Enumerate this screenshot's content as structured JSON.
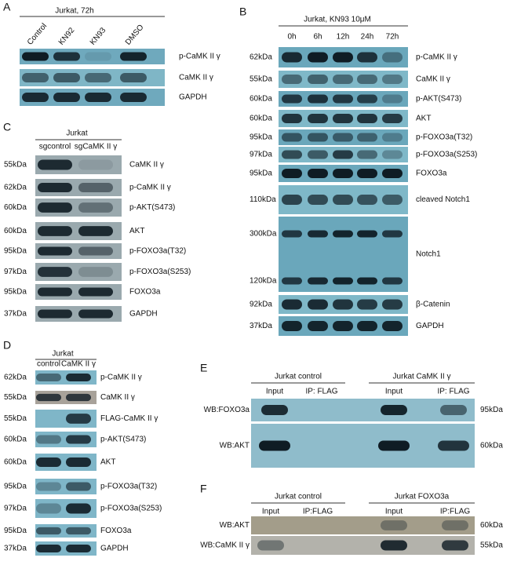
{
  "panels": {
    "a": {
      "letter": "A",
      "title": "Jurkat, 72h",
      "lanes": [
        "Control",
        "KN92",
        "KN93",
        "DMSO"
      ],
      "rows": [
        {
          "name": "p-CaMK II γ"
        },
        {
          "name": "CaMK II γ"
        },
        {
          "name": "GAPDH"
        }
      ]
    },
    "b": {
      "letter": "B",
      "title": "Jurkat, KN93 10μM",
      "lanes": [
        "0h",
        "6h",
        "12h",
        "24h",
        "72h"
      ],
      "rows": [
        {
          "kda": [
            "62kDa"
          ],
          "name": "p-CaMK II γ"
        },
        {
          "kda": [
            "55kDa"
          ],
          "name": "CaMK II γ"
        },
        {
          "kda": [
            "60kDa"
          ],
          "name": "p-AKT(S473)"
        },
        {
          "kda": [
            "60kDa"
          ],
          "name": "AKT"
        },
        {
          "kda": [
            "95kDa"
          ],
          "name": "p-FOXO3a(T32)"
        },
        {
          "kda": [
            "97kDa"
          ],
          "name": "p-FOXO3a(S253)"
        },
        {
          "kda": [
            "95kDa"
          ],
          "name": "FOXO3a"
        },
        {
          "kda": [
            "110kDa"
          ],
          "name": "cleaved Notch1"
        },
        {
          "kda": [
            "300kDa",
            "120kDa"
          ],
          "name": "Notch1"
        },
        {
          "kda": [
            "92kDa"
          ],
          "name": "β-Catenin"
        },
        {
          "kda": [
            "37kDa"
          ],
          "name": "GAPDH"
        }
      ]
    },
    "c": {
      "letter": "C",
      "title": "Jurkat",
      "lanes": [
        "sgcontrol",
        "sgCaMK II γ"
      ],
      "rows": [
        {
          "kda": [
            "55kDa"
          ],
          "name": "CaMK II γ"
        },
        {
          "kda": [
            "62kDa"
          ],
          "name": "p-CaMK II γ"
        },
        {
          "kda": [
            "60kDa"
          ],
          "name": "p-AKT(S473)"
        },
        {
          "kda": [
            "60kDa"
          ],
          "name": "AKT"
        },
        {
          "kda": [
            "95kDa"
          ],
          "name": "p-FOXO3a(T32)"
        },
        {
          "kda": [
            "97kDa"
          ],
          "name": "p-FOXO3a(S253)"
        },
        {
          "kda": [
            "95kDa"
          ],
          "name": "FOXO3a"
        },
        {
          "kda": [
            "37kDa"
          ],
          "name": "GAPDH"
        }
      ]
    },
    "d": {
      "letter": "D",
      "title": "Jurkat",
      "lanes": [
        "control",
        "CaMK II γ"
      ],
      "rows": [
        {
          "kda": [
            "62kDa"
          ],
          "name": "p-CaMK II γ"
        },
        {
          "kda": [
            "55kDa"
          ],
          "name": "CaMK II γ"
        },
        {
          "kda": [
            "55kDa"
          ],
          "name": "FLAG-CaMK II γ"
        },
        {
          "kda": [
            "60kDa"
          ],
          "name": "p-AKT(S473)"
        },
        {
          "kda": [
            "60kDa"
          ],
          "name": "AKT"
        },
        {
          "kda": [
            "95kDa"
          ],
          "name": "p-FOXO3a(T32)"
        },
        {
          "kda": [
            "97kDa"
          ],
          "name": "p-FOXO3a(S253)"
        },
        {
          "kda": [
            "95kDa"
          ],
          "name": "FOXO3a"
        },
        {
          "kda": [
            "37kDa"
          ],
          "name": "GAPDH"
        }
      ]
    },
    "e": {
      "letter": "E",
      "groups": [
        {
          "title": "Jurkat control",
          "lanes": [
            "Input",
            "IP: FLAG"
          ]
        },
        {
          "title": "Jurkat CaMK II γ",
          "lanes": [
            "Input",
            "IP: FLAG"
          ]
        }
      ],
      "rows": [
        {
          "wb": "WB:FOXO3a",
          "kda": [
            "95kDa"
          ]
        },
        {
          "wb": "WB:AKT",
          "kda": [
            "60kDa"
          ]
        }
      ]
    },
    "f": {
      "letter": "F",
      "groups": [
        {
          "title": "Jurkat control",
          "lanes": [
            "Input",
            "IP:FLAG"
          ]
        },
        {
          "title": "Jurkat FOXO3a",
          "lanes": [
            "Input",
            "IP:FLAG"
          ]
        }
      ],
      "rows": [
        {
          "wb": "WB:AKT",
          "kda": [
            "60kDa"
          ]
        },
        {
          "wb": "WB:CaMK II γ",
          "kda": [
            "55kDa"
          ]
        }
      ]
    }
  }
}
